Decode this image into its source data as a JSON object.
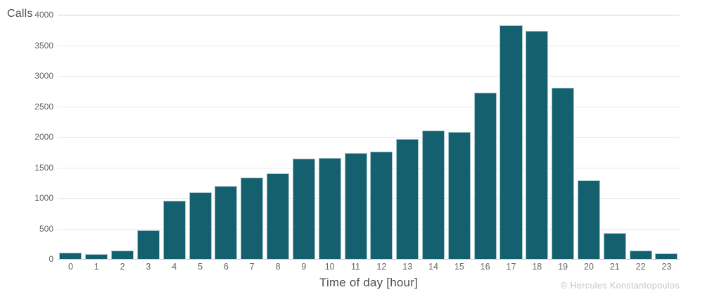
{
  "chart_data": {
    "type": "bar",
    "title": "",
    "xlabel": "Time of day [hour]",
    "ylabel": "Calls",
    "categories": [
      "0",
      "1",
      "2",
      "3",
      "4",
      "5",
      "6",
      "7",
      "8",
      "9",
      "10",
      "11",
      "12",
      "13",
      "14",
      "15",
      "16",
      "17",
      "18",
      "19",
      "20",
      "21",
      "22",
      "23"
    ],
    "values": [
      100,
      75,
      140,
      470,
      950,
      1090,
      1190,
      1330,
      1400,
      1640,
      1650,
      1740,
      1760,
      1960,
      2100,
      2080,
      2730,
      3830,
      3740,
      2800,
      1290,
      420,
      135,
      90
    ],
    "ylim": [
      0,
      4000
    ],
    "yticks": [
      0,
      500,
      1000,
      1500,
      2000,
      2500,
      3000,
      3500,
      4000
    ],
    "grid": "horizontal",
    "legend": "none",
    "colors": {
      "bar_fill": "#14606e",
      "bar_border": "#a3c3ca",
      "gridline": "#e6e6e6",
      "gridline_edge": "#d2d2d2",
      "tick_label": "#666666",
      "axis_title": "#4d4d4d",
      "attribution": "#c4c4c4"
    }
  },
  "attribution": "© Hercules Konstantopoulos"
}
